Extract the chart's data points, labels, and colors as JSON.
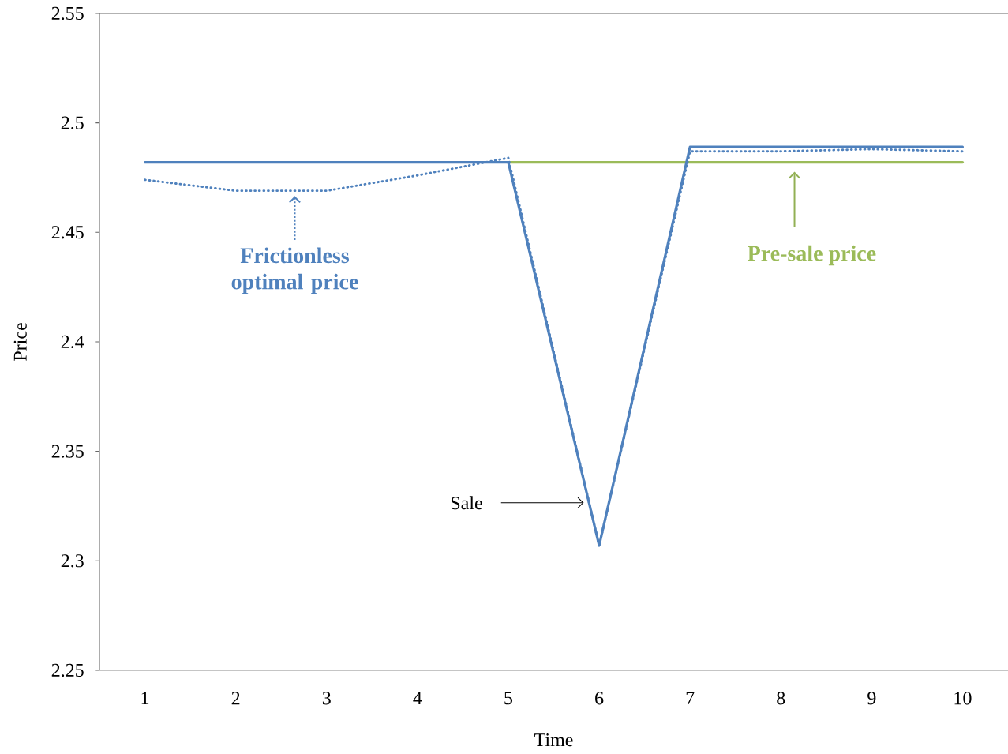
{
  "chart_data": {
    "type": "line",
    "xlabel": "Time",
    "ylabel": "Price",
    "categories": [
      "1",
      "2",
      "3",
      "4",
      "5",
      "6",
      "7",
      "8",
      "9",
      "10"
    ],
    "series": [
      {
        "color": "#9bbb59",
        "line_style": "solid",
        "values": [
          null,
          null,
          null,
          null,
          2.482,
          2.482,
          2.482,
          2.482,
          2.482,
          2.482
        ]
      },
      {
        "color": "#4f81bd",
        "line_style": "dotted",
        "values": [
          2.474,
          2.469,
          2.469,
          2.476,
          2.484,
          2.307,
          2.487,
          2.487,
          2.488,
          2.487
        ]
      },
      {
        "color": "#4f81bd",
        "line_style": "solid",
        "values": [
          2.482,
          2.482,
          2.482,
          2.482,
          2.482,
          2.307,
          2.489,
          2.489,
          2.489,
          2.489
        ]
      }
    ],
    "ylim": [
      2.25,
      2.55
    ],
    "yticks": [
      2.25,
      2.3,
      2.35,
      2.4,
      2.45,
      2.5,
      2.55
    ],
    "annotations": [
      {
        "text": "Frictionless optimal price",
        "y": 2.469
      },
      "Pre-sale price",
      "Sale"
    ],
    "marker": "none"
  }
}
